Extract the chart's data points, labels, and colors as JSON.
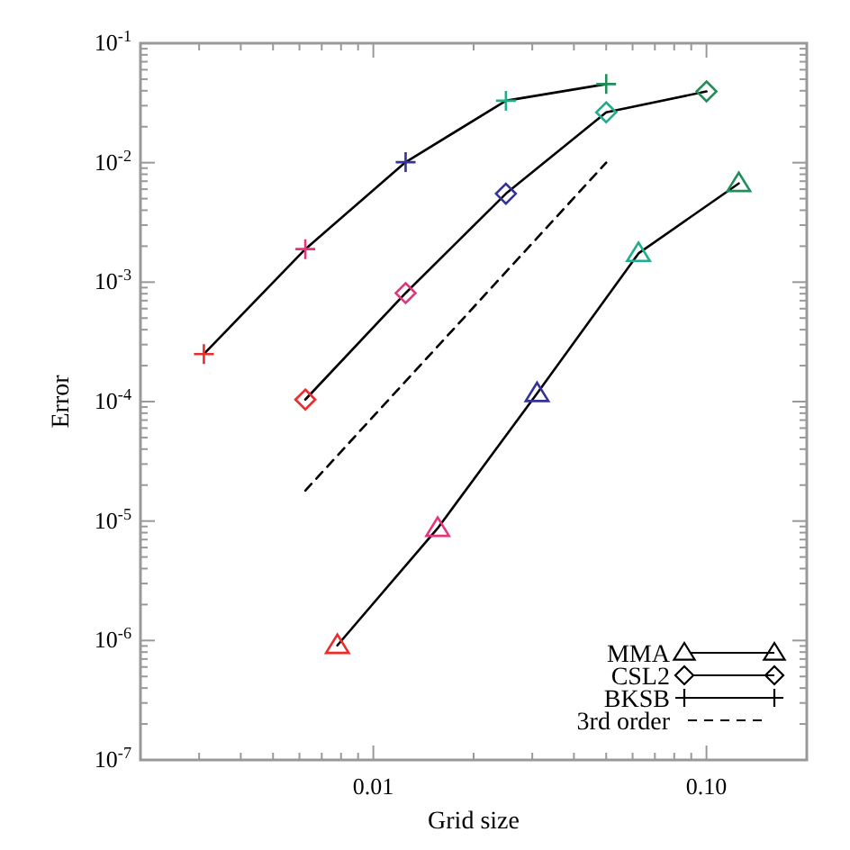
{
  "chart_data": {
    "type": "line",
    "xlabel": "Grid size",
    "ylabel": "Error",
    "log": "xy",
    "grid": false,
    "legend": "bottom right",
    "xlim": [
      0.002,
      0.2
    ],
    "ylim": [
      1e-07,
      0.1
    ],
    "xticks": [
      {
        "value": 0.002,
        "label": null
      },
      {
        "value": 0.003,
        "label": null
      },
      {
        "value": 0.004,
        "label": null
      },
      {
        "value": 0.005,
        "label": null
      },
      {
        "value": 0.006,
        "label": null
      },
      {
        "value": 0.007,
        "label": null
      },
      {
        "value": 0.008,
        "label": null
      },
      {
        "value": 0.009,
        "label": null
      },
      {
        "value": 0.01,
        "label": "0.01"
      },
      {
        "value": 0.02,
        "label": null
      },
      {
        "value": 0.03,
        "label": null
      },
      {
        "value": 0.04,
        "label": null
      },
      {
        "value": 0.05,
        "label": null
      },
      {
        "value": 0.06,
        "label": null
      },
      {
        "value": 0.07,
        "label": null
      },
      {
        "value": 0.08,
        "label": null
      },
      {
        "value": 0.09,
        "label": null
      },
      {
        "value": 0.1,
        "label": "0.10"
      },
      {
        "value": 0.2,
        "label": null
      }
    ],
    "yticks": [
      {
        "value": 1e-07,
        "label": "10$^{-7}$"
      },
      {
        "value": 2e-07,
        "label": null
      },
      {
        "value": 3e-07,
        "label": null
      },
      {
        "value": 4e-07,
        "label": null
      },
      {
        "value": 5e-07,
        "label": null
      },
      {
        "value": 6e-07,
        "label": null
      },
      {
        "value": 7e-07,
        "label": null
      },
      {
        "value": 8e-07,
        "label": null
      },
      {
        "value": 9e-07,
        "label": null
      },
      {
        "value": 1e-06,
        "label": "10$^{-6}$"
      },
      {
        "value": 2e-06,
        "label": null
      },
      {
        "value": 3e-06,
        "label": null
      },
      {
        "value": 4e-06,
        "label": null
      },
      {
        "value": 5e-06,
        "label": null
      },
      {
        "value": 6e-06,
        "label": null
      },
      {
        "value": 7e-06,
        "label": null
      },
      {
        "value": 8e-06,
        "label": null
      },
      {
        "value": 9e-06,
        "label": null
      },
      {
        "value": 1e-05,
        "label": "10$^{-5}$"
      },
      {
        "value": 2e-05,
        "label": null
      },
      {
        "value": 3e-05,
        "label": null
      },
      {
        "value": 4e-05,
        "label": null
      },
      {
        "value": 5e-05,
        "label": null
      },
      {
        "value": 6e-05,
        "label": null
      },
      {
        "value": 7e-05,
        "label": null
      },
      {
        "value": 8e-05,
        "label": null
      },
      {
        "value": 9e-05,
        "label": null
      },
      {
        "value": 0.0001,
        "label": "10$^{-4}$"
      },
      {
        "value": 0.0002,
        "label": null
      },
      {
        "value": 0.0003,
        "label": null
      },
      {
        "value": 0.0004,
        "label": null
      },
      {
        "value": 0.0005,
        "label": null
      },
      {
        "value": 0.0006,
        "label": null
      },
      {
        "value": 0.0007,
        "label": null
      },
      {
        "value": 0.0008,
        "label": null
      },
      {
        "value": 0.0009,
        "label": null
      },
      {
        "value": 0.001,
        "label": "10$^{-3}$"
      },
      {
        "value": 0.002,
        "label": null
      },
      {
        "value": 0.003,
        "label": null
      },
      {
        "value": 0.004,
        "label": null
      },
      {
        "value": 0.005,
        "label": null
      },
      {
        "value": 0.006,
        "label": null
      },
      {
        "value": 0.007,
        "label": null
      },
      {
        "value": 0.008,
        "label": null
      },
      {
        "value": 0.009,
        "label": null
      },
      {
        "value": 0.01,
        "label": "10$^{-2}$"
      },
      {
        "value": 0.02,
        "label": null
      },
      {
        "value": 0.03,
        "label": null
      },
      {
        "value": 0.04,
        "label": null
      },
      {
        "value": 0.05,
        "label": null
      },
      {
        "value": 0.06,
        "label": null
      },
      {
        "value": 0.07,
        "label": null
      },
      {
        "value": 0.08,
        "label": null
      },
      {
        "value": 0.09,
        "label": null
      },
      {
        "value": 0.1,
        "label": "10$^{-1}$"
      }
    ],
    "series": [
      {
        "name": "MMA",
        "color": "#000000",
        "marker": "triangle",
        "line_style": "solid",
        "x": [
          0.0078,
          0.0156,
          0.031,
          0.0625,
          0.125
        ],
        "values": [
          9.1e-07,
          8.7e-06,
          0.000117,
          0.00174,
          0.0067
        ],
        "colors": [
          "#ee2b2b",
          "#e6337a",
          "#333399",
          "#1fae8c",
          "#1f8f5a"
        ]
      },
      {
        "name": "CSL2",
        "color": "#000000",
        "marker": "diamond",
        "line_style": "solid",
        "x": [
          0.00625,
          0.0125,
          0.025,
          0.05,
          0.1
        ],
        "values": [
          0.000104,
          0.00081,
          0.0055,
          0.0264,
          0.0395
        ],
        "colors": [
          "#ee2b2b",
          "#e6337a",
          "#333399",
          "#1fae8c",
          "#1f8f5a"
        ]
      },
      {
        "name": "BKSB",
        "color": "#000000",
        "marker": "cross",
        "line_style": "solid",
        "x": [
          0.0031,
          0.00625,
          0.0125,
          0.025,
          0.05
        ],
        "values": [
          0.00025,
          0.00189,
          0.0101,
          0.033,
          0.0455
        ],
        "colors": [
          "#ee2b2b",
          "#e6337a",
          "#333399",
          "#1fae8c",
          "#1f8f5a"
        ]
      },
      {
        "name": "3rd order",
        "color": "#000000",
        "marker": "none",
        "line_style": "dashed",
        "x": [
          0.00625,
          0.05
        ],
        "values": [
          1.8e-05,
          0.01
        ]
      }
    ]
  }
}
